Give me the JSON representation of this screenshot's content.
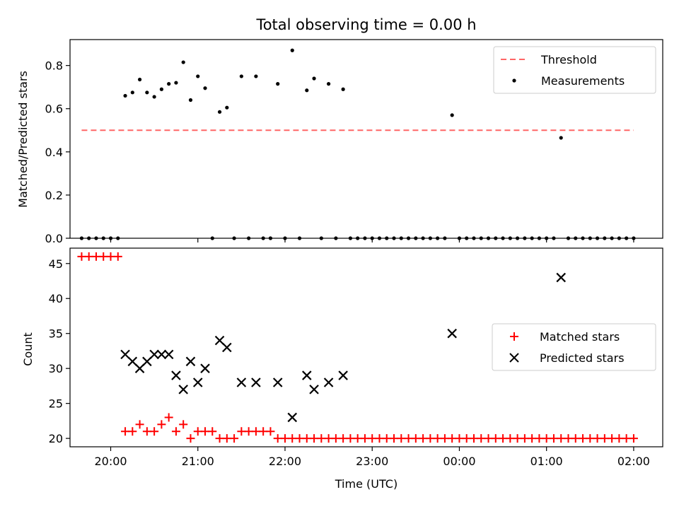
{
  "title": "Total observing time = 0.00 h",
  "colors": {
    "threshold": "#ff6666",
    "measurement": "#000000",
    "matched": "#ff0000",
    "predicted": "#000000"
  },
  "chart_data": [
    {
      "type": "scatter",
      "ylabel": "Matched/Predicted stars",
      "xlabel": "",
      "xlim": [
        "19:32",
        "02:20"
      ],
      "ylim": [
        0,
        0.92
      ],
      "yticks": [
        0.0,
        0.2,
        0.4,
        0.6,
        0.8
      ],
      "ytick_labels": [
        "0.0",
        "0.2",
        "0.4",
        "0.6",
        "0.8"
      ],
      "grid": false,
      "legend": "top-right",
      "legend_labels": [
        "Threshold",
        "Measurements"
      ],
      "threshold": {
        "name": "Threshold",
        "x": [
          "19:40",
          "02:00"
        ],
        "y": 0.5
      },
      "series": [
        {
          "name": "Measurements",
          "points": [
            [
              "19:40",
              0.0
            ],
            [
              "19:45",
              0.0
            ],
            [
              "19:50",
              0.0
            ],
            [
              "19:55",
              0.0
            ],
            [
              "20:00",
              0.0
            ],
            [
              "20:05",
              0.0
            ],
            [
              "20:10",
              0.66
            ],
            [
              "20:15",
              0.675
            ],
            [
              "20:20",
              0.735
            ],
            [
              "20:25",
              0.675
            ],
            [
              "20:30",
              0.655
            ],
            [
              "20:35",
              0.69
            ],
            [
              "20:40",
              0.715
            ],
            [
              "20:45",
              0.72
            ],
            [
              "20:50",
              0.815
            ],
            [
              "20:55",
              0.64
            ],
            [
              "21:00",
              0.75
            ],
            [
              "21:05",
              0.695
            ],
            [
              "21:10",
              0.0
            ],
            [
              "21:15",
              0.585
            ],
            [
              "21:20",
              0.605
            ],
            [
              "21:25",
              0.0
            ],
            [
              "21:30",
              0.75
            ],
            [
              "21:35",
              0.0
            ],
            [
              "21:40",
              0.75
            ],
            [
              "21:45",
              0.0
            ],
            [
              "21:50",
              0.0
            ],
            [
              "21:55",
              0.715
            ],
            [
              "22:00",
              0.0
            ],
            [
              "22:05",
              0.87
            ],
            [
              "22:10",
              0.0
            ],
            [
              "22:15",
              0.685
            ],
            [
              "22:20",
              0.74
            ],
            [
              "22:25",
              0.0
            ],
            [
              "22:30",
              0.715
            ],
            [
              "22:35",
              0.0
            ],
            [
              "22:40",
              0.69
            ],
            [
              "22:45",
              0.0
            ],
            [
              "22:50",
              0.0
            ],
            [
              "22:55",
              0.0
            ],
            [
              "23:00",
              0.0
            ],
            [
              "23:05",
              0.0
            ],
            [
              "23:10",
              0.0
            ],
            [
              "23:15",
              0.0
            ],
            [
              "23:20",
              0.0
            ],
            [
              "23:25",
              0.0
            ],
            [
              "23:30",
              0.0
            ],
            [
              "23:35",
              0.0
            ],
            [
              "23:40",
              0.0
            ],
            [
              "23:45",
              0.0
            ],
            [
              "23:50",
              0.0
            ],
            [
              "23:55",
              0.57
            ],
            [
              "00:00",
              0.0
            ],
            [
              "00:05",
              0.0
            ],
            [
              "00:10",
              0.0
            ],
            [
              "00:15",
              0.0
            ],
            [
              "00:20",
              0.0
            ],
            [
              "00:25",
              0.0
            ],
            [
              "00:30",
              0.0
            ],
            [
              "00:35",
              0.0
            ],
            [
              "00:40",
              0.0
            ],
            [
              "00:45",
              0.0
            ],
            [
              "00:50",
              0.0
            ],
            [
              "00:55",
              0.0
            ],
            [
              "01:00",
              0.0
            ],
            [
              "01:05",
              0.0
            ],
            [
              "01:10",
              0.465
            ],
            [
              "01:15",
              0.0
            ],
            [
              "01:20",
              0.0
            ],
            [
              "01:25",
              0.0
            ],
            [
              "01:30",
              0.0
            ],
            [
              "01:35",
              0.0
            ],
            [
              "01:40",
              0.0
            ],
            [
              "01:45",
              0.0
            ],
            [
              "01:50",
              0.0
            ],
            [
              "01:55",
              0.0
            ],
            [
              "02:00",
              0.0
            ]
          ]
        }
      ]
    },
    {
      "type": "scatter",
      "ylabel": "Count",
      "xlabel": "Time (UTC)",
      "xlim": [
        "19:32",
        "02:20"
      ],
      "ylim": [
        18.8,
        47.2
      ],
      "yticks": [
        20,
        25,
        30,
        35,
        40,
        45
      ],
      "ytick_labels": [
        "20",
        "25",
        "30",
        "35",
        "40",
        "45"
      ],
      "xticks": [
        "20:00",
        "21:00",
        "22:00",
        "23:00",
        "00:00",
        "01:00",
        "02:00"
      ],
      "grid": false,
      "legend": "center-right",
      "legend_labels": [
        "Matched stars",
        "Predicted stars"
      ],
      "series": [
        {
          "name": "Matched stars",
          "points": [
            [
              "19:40",
              46
            ],
            [
              "19:45",
              46
            ],
            [
              "19:50",
              46
            ],
            [
              "19:55",
              46
            ],
            [
              "20:00",
              46
            ],
            [
              "20:05",
              46
            ],
            [
              "20:10",
              21
            ],
            [
              "20:15",
              21
            ],
            [
              "20:20",
              22
            ],
            [
              "20:25",
              21
            ],
            [
              "20:30",
              21
            ],
            [
              "20:35",
              22
            ],
            [
              "20:40",
              23
            ],
            [
              "20:45",
              21
            ],
            [
              "20:50",
              22
            ],
            [
              "20:55",
              20
            ],
            [
              "21:00",
              21
            ],
            [
              "21:05",
              21
            ],
            [
              "21:10",
              21
            ],
            [
              "21:15",
              20
            ],
            [
              "21:20",
              20
            ],
            [
              "21:25",
              20
            ],
            [
              "21:30",
              21
            ],
            [
              "21:35",
              21
            ],
            [
              "21:40",
              21
            ],
            [
              "21:45",
              21
            ],
            [
              "21:50",
              21
            ],
            [
              "21:55",
              20
            ],
            [
              "22:00",
              20
            ],
            [
              "22:05",
              20
            ],
            [
              "22:10",
              20
            ],
            [
              "22:15",
              20
            ],
            [
              "22:20",
              20
            ],
            [
              "22:25",
              20
            ],
            [
              "22:30",
              20
            ],
            [
              "22:35",
              20
            ],
            [
              "22:40",
              20
            ],
            [
              "22:45",
              20
            ],
            [
              "22:50",
              20
            ],
            [
              "22:55",
              20
            ],
            [
              "23:00",
              20
            ],
            [
              "23:05",
              20
            ],
            [
              "23:10",
              20
            ],
            [
              "23:15",
              20
            ],
            [
              "23:20",
              20
            ],
            [
              "23:25",
              20
            ],
            [
              "23:30",
              20
            ],
            [
              "23:35",
              20
            ],
            [
              "23:40",
              20
            ],
            [
              "23:45",
              20
            ],
            [
              "23:50",
              20
            ],
            [
              "23:55",
              20
            ],
            [
              "00:00",
              20
            ],
            [
              "00:05",
              20
            ],
            [
              "00:10",
              20
            ],
            [
              "00:15",
              20
            ],
            [
              "00:20",
              20
            ],
            [
              "00:25",
              20
            ],
            [
              "00:30",
              20
            ],
            [
              "00:35",
              20
            ],
            [
              "00:40",
              20
            ],
            [
              "00:45",
              20
            ],
            [
              "00:50",
              20
            ],
            [
              "00:55",
              20
            ],
            [
              "01:00",
              20
            ],
            [
              "01:05",
              20
            ],
            [
              "01:10",
              20
            ],
            [
              "01:15",
              20
            ],
            [
              "01:20",
              20
            ],
            [
              "01:25",
              20
            ],
            [
              "01:30",
              20
            ],
            [
              "01:35",
              20
            ],
            [
              "01:40",
              20
            ],
            [
              "01:45",
              20
            ],
            [
              "01:50",
              20
            ],
            [
              "01:55",
              20
            ],
            [
              "02:00",
              20
            ]
          ]
        },
        {
          "name": "Predicted stars",
          "points": [
            [
              "20:10",
              32
            ],
            [
              "20:15",
              31
            ],
            [
              "20:20",
              30
            ],
            [
              "20:25",
              31
            ],
            [
              "20:30",
              32
            ],
            [
              "20:35",
              32
            ],
            [
              "20:40",
              32
            ],
            [
              "20:45",
              29
            ],
            [
              "20:50",
              27
            ],
            [
              "20:55",
              31
            ],
            [
              "21:00",
              28
            ],
            [
              "21:05",
              30
            ],
            [
              "21:15",
              34
            ],
            [
              "21:20",
              33
            ],
            [
              "21:30",
              28
            ],
            [
              "21:40",
              28
            ],
            [
              "21:55",
              28
            ],
            [
              "22:05",
              23
            ],
            [
              "22:15",
              29
            ],
            [
              "22:20",
              27
            ],
            [
              "22:30",
              28
            ],
            [
              "22:40",
              29
            ],
            [
              "23:55",
              35
            ],
            [
              "01:10",
              43
            ]
          ]
        }
      ]
    }
  ]
}
